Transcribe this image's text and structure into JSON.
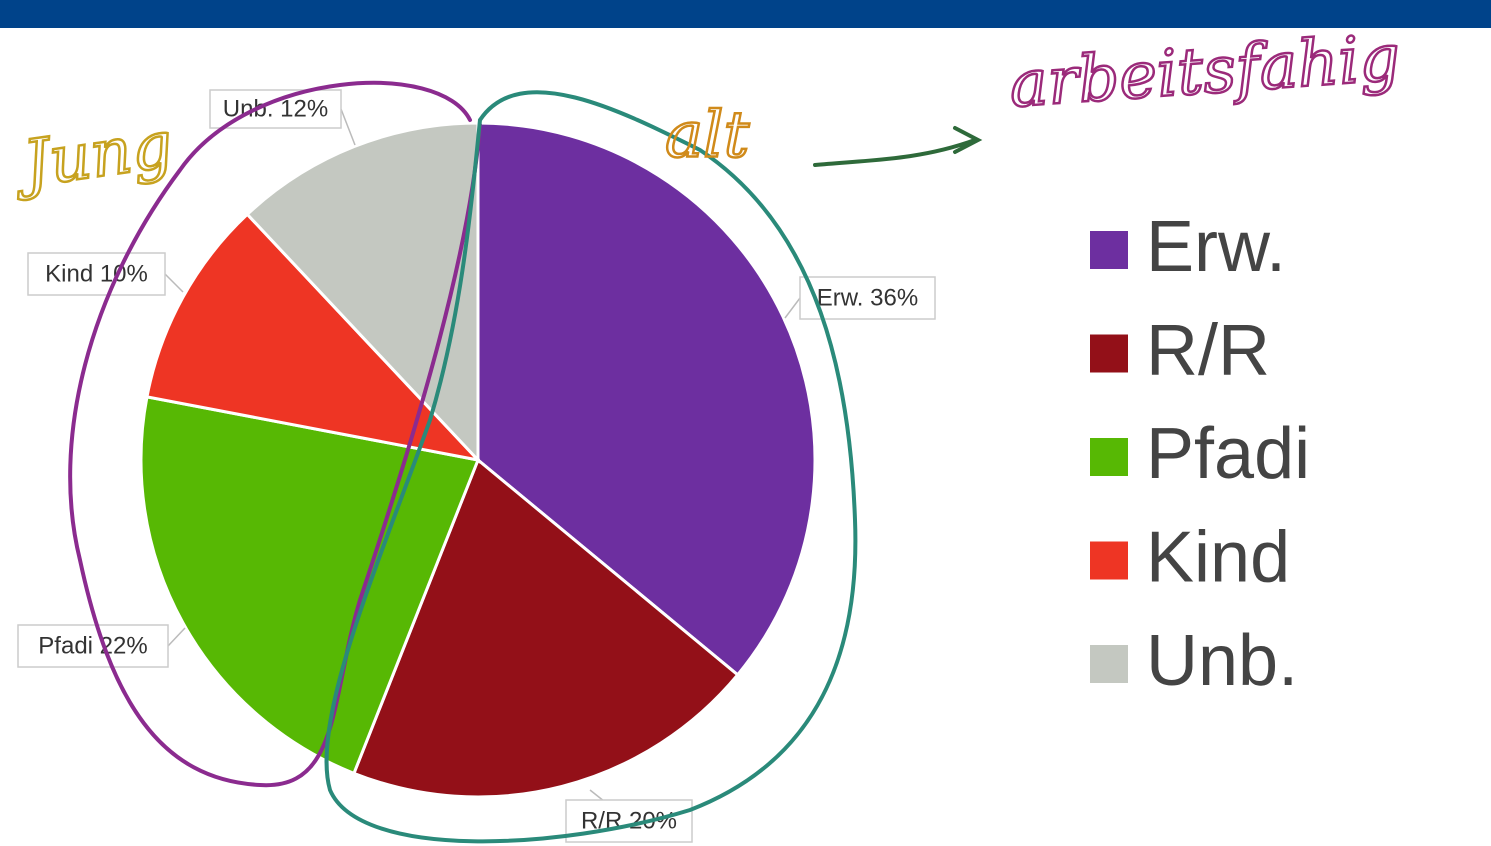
{
  "chart_data": {
    "type": "pie",
    "categories": [
      "Erw.",
      "R/R",
      "Pfadi",
      "Kind",
      "Unb."
    ],
    "values": [
      36,
      20,
      22,
      10,
      12
    ],
    "value_labels": [
      "Erw. 36%",
      "R/R 20%",
      "Pfadi 22%",
      "Kind 10%",
      "Unb. 12%"
    ],
    "colors": [
      "#6d2fa0",
      "#931018",
      "#57b804",
      "#ee3524",
      "#c4c8c1"
    ],
    "legend": "right",
    "annotations": [
      "Jung",
      "alt",
      "arbeitsfahig"
    ]
  }
}
